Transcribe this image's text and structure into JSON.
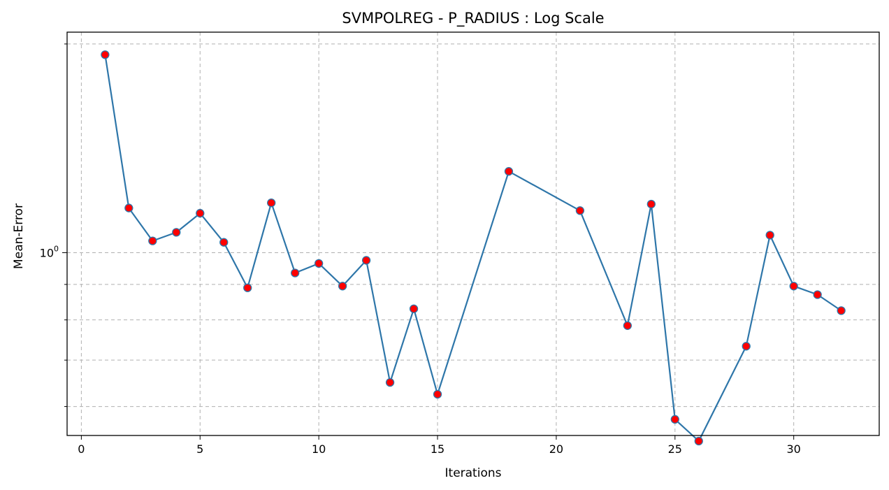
{
  "chart_data": {
    "type": "line",
    "title": "SVMPOLREG - P_RADIUS : Log Scale",
    "xlabel": "Iterations",
    "ylabel": "Mean-Error",
    "yscale": "log",
    "xlim": [
      -0.6,
      33.6
    ],
    "ylim": [
      0.545,
      2.08
    ],
    "grid": true,
    "x_ticks": [
      0,
      5,
      10,
      15,
      20,
      25,
      30
    ],
    "y_major_tick": {
      "value": 1,
      "base": "10",
      "exponent": "0"
    },
    "y_minor_ticks": [
      0.6,
      0.7,
      0.8,
      0.9,
      2
    ],
    "line_color": "#2e76a9",
    "marker_color": "#ff0000",
    "series": [
      {
        "x": [
          1,
          2,
          3,
          4,
          5,
          6,
          7,
          8,
          9,
          10,
          11,
          12,
          13,
          14,
          15,
          18,
          21,
          23,
          24,
          25,
          26,
          28,
          29,
          30,
          31,
          32
        ],
        "y": [
          1.93,
          1.16,
          1.04,
          1.07,
          1.14,
          1.035,
          0.89,
          1.18,
          0.935,
          0.965,
          0.895,
          0.975,
          0.65,
          0.83,
          0.625,
          1.31,
          1.15,
          0.785,
          1.175,
          0.575,
          0.535,
          0.733,
          1.06,
          0.895,
          0.87,
          0.825
        ]
      }
    ]
  }
}
